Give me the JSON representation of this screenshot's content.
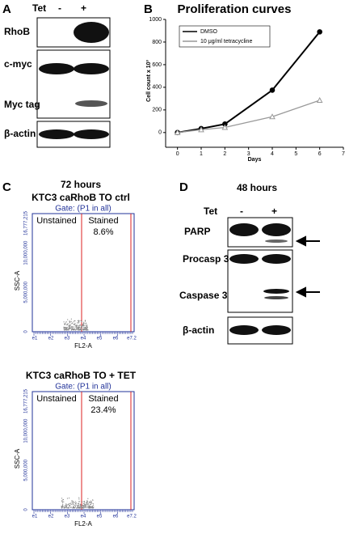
{
  "panel_a": {
    "letter": "A",
    "tet": "Tet",
    "minus": "-",
    "plus": "+",
    "bands": [
      "RhoB",
      "c-myc",
      "Myc tag",
      "β-actin"
    ]
  },
  "chart_data": {
    "type": "line",
    "letter": "B",
    "title": "Proliferation curves",
    "x_label": "Days",
    "y_label": "Cell count x 10³",
    "x": [
      0,
      1,
      2,
      4,
      6
    ],
    "series": [
      {
        "name": "DMSO",
        "color": "#000000",
        "marker": "circle",
        "values": [
          0,
          35,
          75,
          375,
          890
        ]
      },
      {
        "name": "10 μg/ml tetracycline",
        "color": "#999999",
        "marker": "triangle",
        "values": [
          0,
          25,
          45,
          140,
          285
        ]
      }
    ],
    "xlim": [
      -0.5,
      7
    ],
    "ylim": [
      -130,
      1000
    ],
    "xticks": [
      0,
      1,
      2,
      3,
      4,
      5,
      6,
      7
    ],
    "yticks": [
      0,
      200,
      400,
      600,
      800,
      1000
    ],
    "legend": "upper left"
  },
  "panel_c": {
    "letter": "C",
    "time": "72 hours",
    "y_label": "SSC-A",
    "x_label": "FL2-A",
    "yticks": [
      "16,777,215",
      "10,000,000",
      "5,000,000",
      "0"
    ],
    "xticks": [
      "e1",
      "e2",
      "e3",
      "e4",
      "e5",
      "e6",
      "e7.2"
    ],
    "plots": [
      {
        "title": "KTC3 caRhoB TO ctrl",
        "gate": "Gate: (P1 in all)",
        "left": "Unstained",
        "right": "Stained",
        "percent": "8.6%"
      },
      {
        "title": "KTC3 caRhoB TO + TET",
        "gate": "Gate: (P1 in all)",
        "left": "Unstained",
        "right": "Stained",
        "percent": "23.4%"
      }
    ]
  },
  "panel_d": {
    "letter": "D",
    "time": "48 hours",
    "tet": "Tet",
    "minus": "-",
    "plus": "+",
    "bands": [
      "PARP",
      "Procasp 3",
      "Caspase 3",
      "β-actin"
    ]
  }
}
